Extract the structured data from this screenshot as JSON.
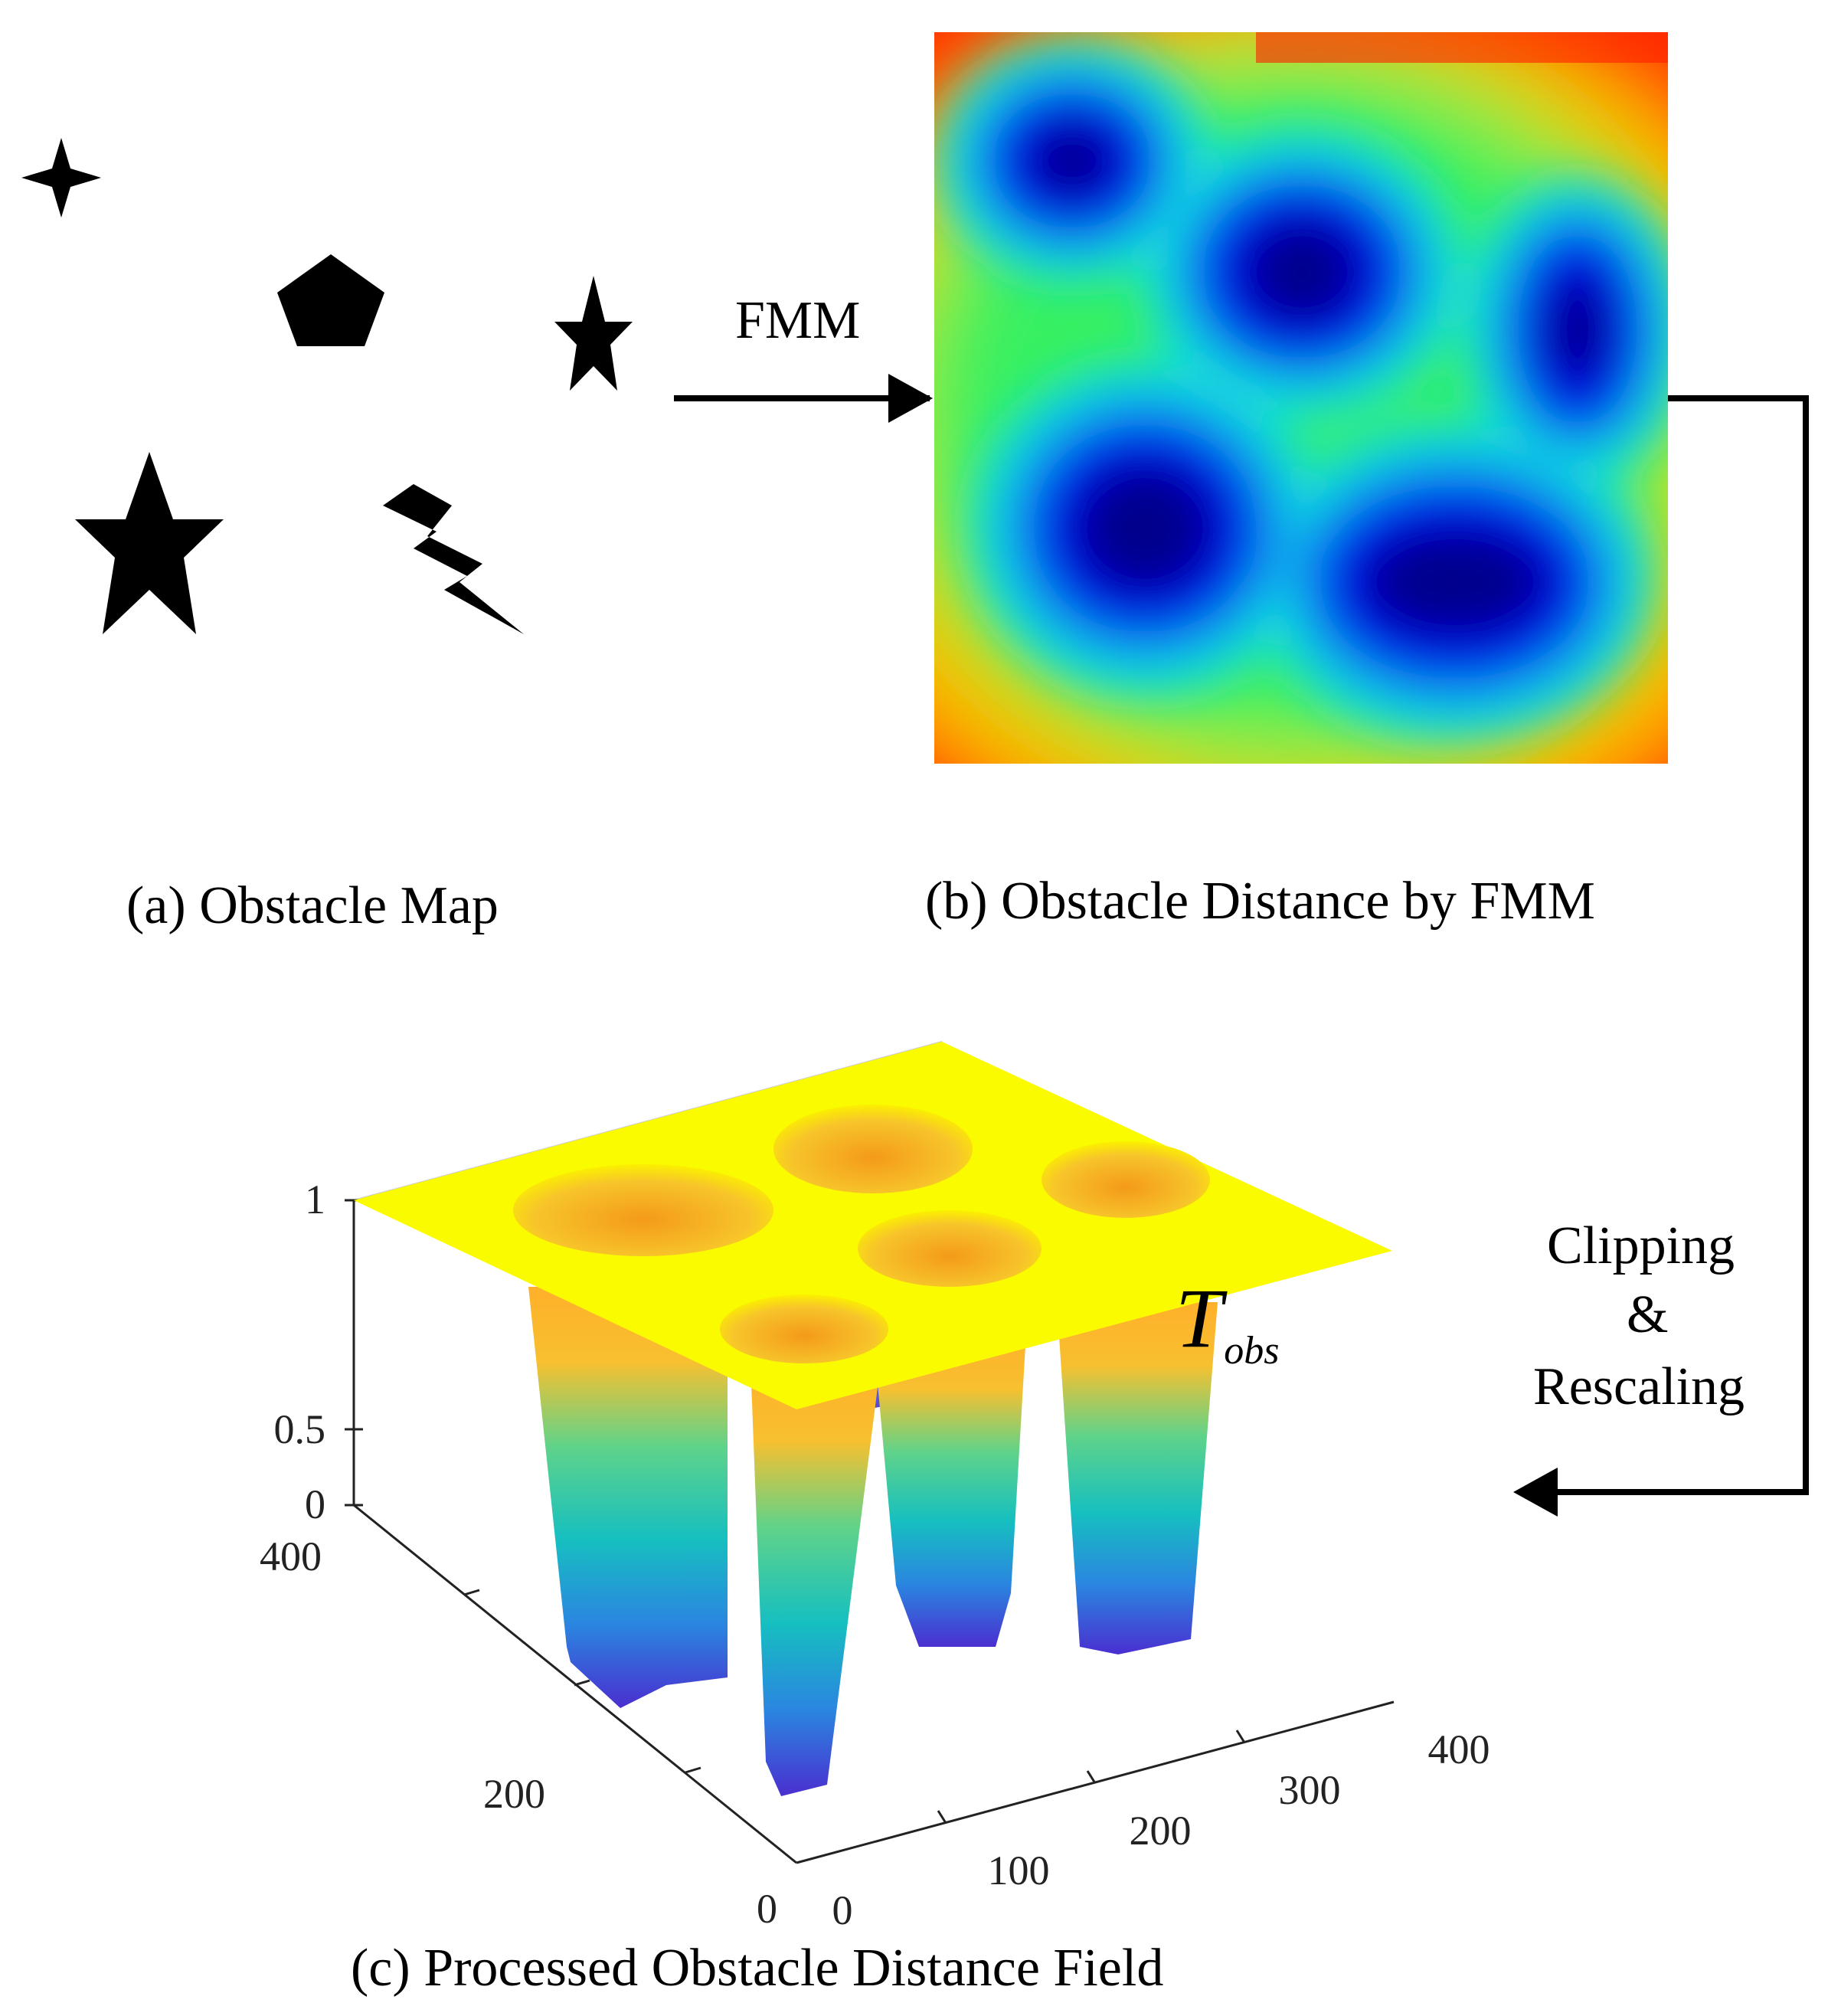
{
  "panels": {
    "a": {
      "caption": "(a) Obstacle Map"
    },
    "b": {
      "caption": "(b) Obstacle Distance by FMM"
    },
    "c": {
      "caption": "(c) Processed Obstacle Distance Field"
    }
  },
  "arrows": {
    "fmm": {
      "label": "FMM"
    },
    "clip": {
      "line1": "Clipping",
      "line2": "&",
      "line3": "Rescaling"
    }
  },
  "annotation": {
    "main": "T",
    "sub": "obs"
  },
  "surface_axes": {
    "z_ticks": [
      "0",
      "0.5",
      "1"
    ],
    "y_ticks": [
      "0",
      "200",
      "400"
    ],
    "x_ticks": [
      "0",
      "100",
      "200",
      "300",
      "400"
    ]
  },
  "colors": {
    "surface_top": "#fbfb00",
    "surface_mid": "#17c6b0",
    "surface_bottom": "#4a2fd0",
    "map_far": "#ff2000",
    "map_near": "#00008c"
  }
}
